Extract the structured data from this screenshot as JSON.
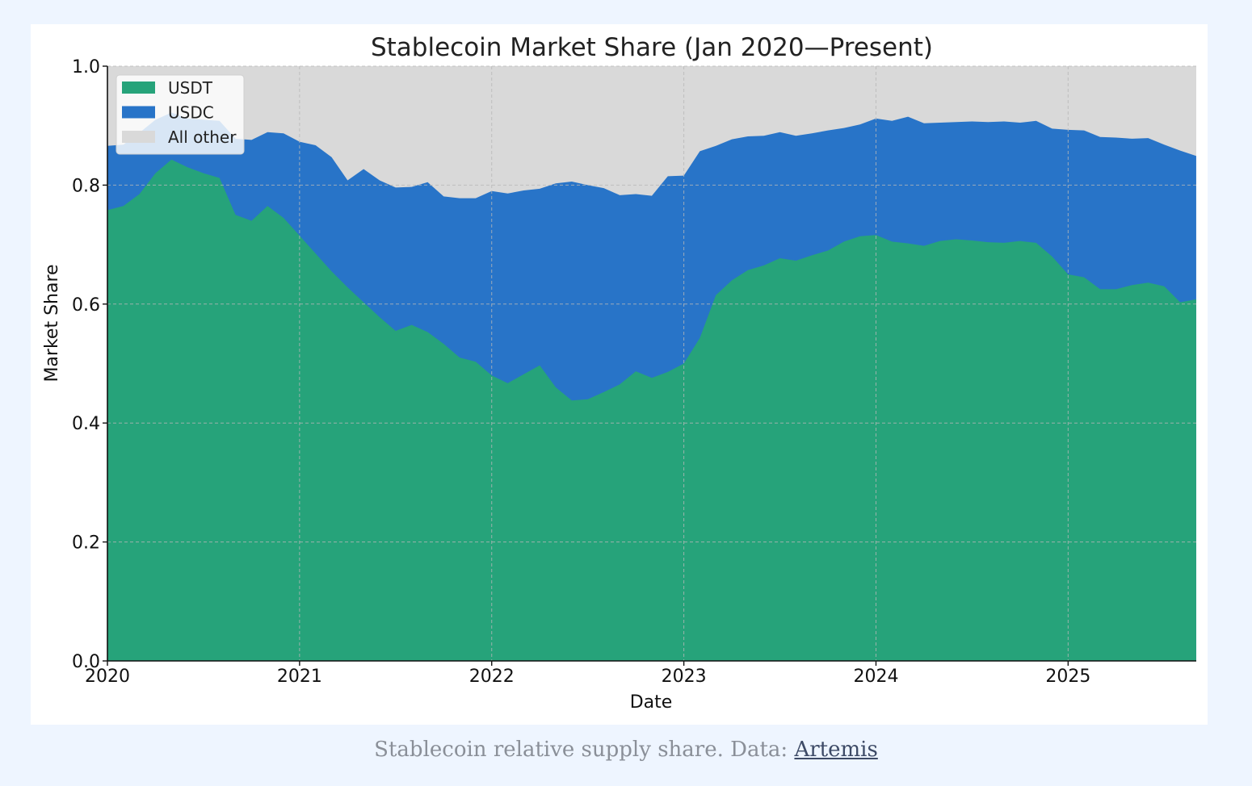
{
  "chart_data": {
    "type": "area",
    "stacked": true,
    "title": "Stablecoin Market Share (Jan 2020—Present)",
    "xlabel": "Date",
    "ylabel": "Market Share",
    "x_start": 2020.0,
    "x_end": 2025.667,
    "ylim": [
      0,
      1
    ],
    "x_ticks": [
      2020,
      2021,
      2022,
      2023,
      2024,
      2025
    ],
    "x_tick_labels": [
      "2020",
      "2021",
      "2022",
      "2023",
      "2024",
      "2025"
    ],
    "y_ticks": [
      0.0,
      0.2,
      0.4,
      0.6,
      0.8,
      1.0
    ],
    "y_tick_labels": [
      "0.0",
      "0.2",
      "0.4",
      "0.6",
      "0.8",
      "1.0"
    ],
    "grid": true,
    "legend_position": "top-left",
    "x_step_months": 1,
    "series": [
      {
        "name": "USDT",
        "color": "#26a37a",
        "cumulative": [
          0.758,
          0.765,
          0.785,
          0.82,
          0.843,
          0.83,
          0.82,
          0.812,
          0.75,
          0.74,
          0.765,
          0.745,
          0.715,
          0.685,
          0.655,
          0.628,
          0.603,
          0.578,
          0.555,
          0.565,
          0.553,
          0.533,
          0.51,
          0.503,
          0.48,
          0.467,
          0.482,
          0.497,
          0.46,
          0.438,
          0.44,
          0.452,
          0.465,
          0.487,
          0.476,
          0.486,
          0.5,
          0.543,
          0.615,
          0.64,
          0.657,
          0.665,
          0.677,
          0.673,
          0.682,
          0.69,
          0.705,
          0.714,
          0.716,
          0.705,
          0.702,
          0.698,
          0.706,
          0.709,
          0.707,
          0.704,
          0.703,
          0.706,
          0.703,
          0.68,
          0.65,
          0.645,
          0.625,
          0.625,
          0.632,
          0.636,
          0.63,
          0.603,
          0.608
        ]
      },
      {
        "name": "USDC",
        "color": "#2874c8",
        "cumulative": [
          0.866,
          0.868,
          0.888,
          0.91,
          0.922,
          0.912,
          0.91,
          0.908,
          0.878,
          0.876,
          0.889,
          0.887,
          0.873,
          0.867,
          0.847,
          0.808,
          0.827,
          0.808,
          0.796,
          0.797,
          0.805,
          0.781,
          0.778,
          0.778,
          0.79,
          0.786,
          0.791,
          0.794,
          0.803,
          0.806,
          0.8,
          0.795,
          0.783,
          0.785,
          0.782,
          0.815,
          0.816,
          0.857,
          0.866,
          0.877,
          0.882,
          0.883,
          0.889,
          0.883,
          0.887,
          0.892,
          0.896,
          0.902,
          0.912,
          0.908,
          0.915,
          0.904,
          0.905,
          0.906,
          0.907,
          0.906,
          0.907,
          0.905,
          0.908,
          0.895,
          0.893,
          0.892,
          0.881,
          0.88,
          0.878,
          0.879,
          0.868,
          0.858,
          0.849
        ]
      },
      {
        "name": "All other",
        "color": "#d9d9d9",
        "cumulative_constant": 1.0
      }
    ]
  },
  "caption": {
    "text": "Stablecoin relative supply share. Data:",
    "link_text": "Artemis"
  }
}
